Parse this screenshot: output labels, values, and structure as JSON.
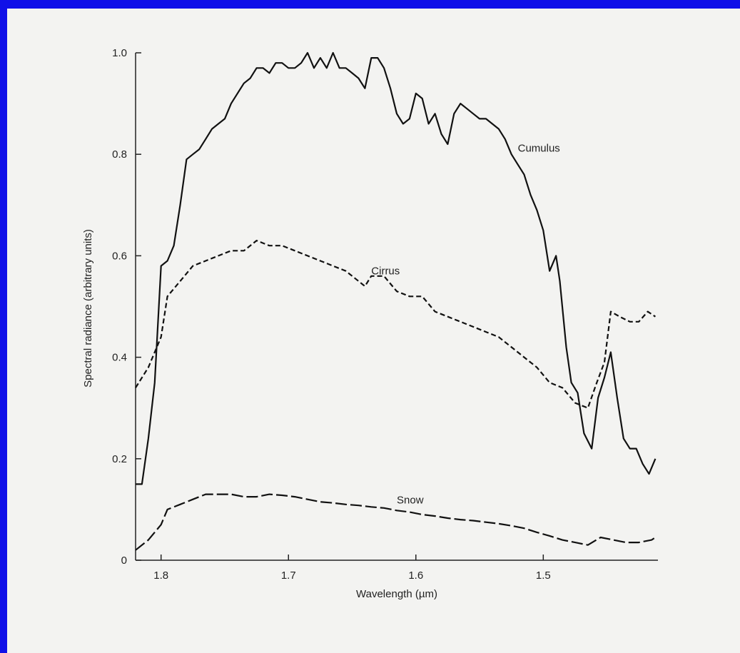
{
  "chart_data": {
    "type": "line",
    "title": "",
    "xlabel": "Wavelength (µm)",
    "ylabel": "Spectral radiance (arbitrary units)",
    "xlim": [
      1.82,
      1.41
    ],
    "ylim": [
      0,
      1.0
    ],
    "x_reversed": true,
    "grid": false,
    "x_ticks": [
      {
        "value": 1.8,
        "label": "1.8"
      },
      {
        "value": 1.7,
        "label": "1.7"
      },
      {
        "value": 1.6,
        "label": "1.6"
      },
      {
        "value": 1.5,
        "label": "1.5"
      }
    ],
    "y_ticks": [
      {
        "value": 0,
        "label": "0"
      },
      {
        "value": 0.2,
        "label": "0.2"
      },
      {
        "value": 0.4,
        "label": "0.4"
      },
      {
        "value": 0.6,
        "label": "0.6"
      },
      {
        "value": 0.8,
        "label": "0.8"
      },
      {
        "value": 1.0,
        "label": "1.0"
      }
    ],
    "series": [
      {
        "name": "Cumulus",
        "style": "solid",
        "label_at": [
          1.52,
          0.805
        ],
        "points": [
          [
            1.82,
            0.15
          ],
          [
            1.815,
            0.15
          ],
          [
            1.81,
            0.24
          ],
          [
            1.805,
            0.35
          ],
          [
            1.8,
            0.58
          ],
          [
            1.795,
            0.59
          ],
          [
            1.79,
            0.62
          ],
          [
            1.785,
            0.7
          ],
          [
            1.78,
            0.79
          ],
          [
            1.775,
            0.8
          ],
          [
            1.77,
            0.81
          ],
          [
            1.765,
            0.83
          ],
          [
            1.76,
            0.85
          ],
          [
            1.755,
            0.86
          ],
          [
            1.75,
            0.87
          ],
          [
            1.745,
            0.9
          ],
          [
            1.74,
            0.92
          ],
          [
            1.735,
            0.94
          ],
          [
            1.73,
            0.95
          ],
          [
            1.725,
            0.97
          ],
          [
            1.72,
            0.97
          ],
          [
            1.715,
            0.96
          ],
          [
            1.71,
            0.98
          ],
          [
            1.705,
            0.98
          ],
          [
            1.7,
            0.97
          ],
          [
            1.695,
            0.97
          ],
          [
            1.69,
            0.98
          ],
          [
            1.685,
            1.0
          ],
          [
            1.68,
            0.97
          ],
          [
            1.675,
            0.99
          ],
          [
            1.67,
            0.97
          ],
          [
            1.665,
            1.0
          ],
          [
            1.66,
            0.97
          ],
          [
            1.655,
            0.97
          ],
          [
            1.65,
            0.96
          ],
          [
            1.645,
            0.95
          ],
          [
            1.64,
            0.93
          ],
          [
            1.635,
            0.99
          ],
          [
            1.63,
            0.99
          ],
          [
            1.625,
            0.97
          ],
          [
            1.62,
            0.93
          ],
          [
            1.615,
            0.88
          ],
          [
            1.61,
            0.86
          ],
          [
            1.605,
            0.87
          ],
          [
            1.6,
            0.92
          ],
          [
            1.595,
            0.91
          ],
          [
            1.59,
            0.86
          ],
          [
            1.585,
            0.88
          ],
          [
            1.58,
            0.84
          ],
          [
            1.575,
            0.82
          ],
          [
            1.57,
            0.88
          ],
          [
            1.565,
            0.9
          ],
          [
            1.56,
            0.89
          ],
          [
            1.555,
            0.88
          ],
          [
            1.55,
            0.87
          ],
          [
            1.545,
            0.87
          ],
          [
            1.54,
            0.86
          ],
          [
            1.535,
            0.85
          ],
          [
            1.53,
            0.83
          ],
          [
            1.525,
            0.8
          ],
          [
            1.52,
            0.78
          ],
          [
            1.515,
            0.76
          ],
          [
            1.51,
            0.72
          ],
          [
            1.505,
            0.69
          ],
          [
            1.5,
            0.65
          ],
          [
            1.495,
            0.57
          ],
          [
            1.49,
            0.6
          ],
          [
            1.487,
            0.55
          ],
          [
            1.482,
            0.42
          ],
          [
            1.478,
            0.35
          ],
          [
            1.473,
            0.33
          ],
          [
            1.468,
            0.25
          ],
          [
            1.462,
            0.22
          ],
          [
            1.457,
            0.32
          ],
          [
            1.452,
            0.36
          ],
          [
            1.447,
            0.41
          ],
          [
            1.442,
            0.32
          ],
          [
            1.437,
            0.24
          ],
          [
            1.432,
            0.22
          ],
          [
            1.427,
            0.22
          ],
          [
            1.422,
            0.19
          ],
          [
            1.417,
            0.17
          ],
          [
            1.412,
            0.2
          ]
        ]
      },
      {
        "name": "Cirrus",
        "style": "dashed",
        "label_at": [
          1.635,
          0.563
        ],
        "points": [
          [
            1.82,
            0.34
          ],
          [
            1.81,
            0.38
          ],
          [
            1.8,
            0.44
          ],
          [
            1.795,
            0.52
          ],
          [
            1.785,
            0.55
          ],
          [
            1.775,
            0.58
          ],
          [
            1.765,
            0.59
          ],
          [
            1.755,
            0.6
          ],
          [
            1.745,
            0.61
          ],
          [
            1.735,
            0.61
          ],
          [
            1.725,
            0.63
          ],
          [
            1.715,
            0.62
          ],
          [
            1.705,
            0.62
          ],
          [
            1.695,
            0.61
          ],
          [
            1.685,
            0.6
          ],
          [
            1.675,
            0.59
          ],
          [
            1.665,
            0.58
          ],
          [
            1.655,
            0.57
          ],
          [
            1.645,
            0.55
          ],
          [
            1.64,
            0.54
          ],
          [
            1.635,
            0.56
          ],
          [
            1.625,
            0.56
          ],
          [
            1.615,
            0.53
          ],
          [
            1.605,
            0.52
          ],
          [
            1.595,
            0.52
          ],
          [
            1.585,
            0.49
          ],
          [
            1.575,
            0.48
          ],
          [
            1.565,
            0.47
          ],
          [
            1.555,
            0.46
          ],
          [
            1.545,
            0.45
          ],
          [
            1.535,
            0.44
          ],
          [
            1.525,
            0.42
          ],
          [
            1.515,
            0.4
          ],
          [
            1.505,
            0.38
          ],
          [
            1.495,
            0.35
          ],
          [
            1.485,
            0.34
          ],
          [
            1.475,
            0.31
          ],
          [
            1.465,
            0.3
          ],
          [
            1.458,
            0.35
          ],
          [
            1.452,
            0.39
          ],
          [
            1.447,
            0.49
          ],
          [
            1.44,
            0.48
          ],
          [
            1.432,
            0.47
          ],
          [
            1.425,
            0.47
          ],
          [
            1.418,
            0.49
          ],
          [
            1.412,
            0.48
          ]
        ]
      },
      {
        "name": "Snow",
        "style": "long-dashed",
        "label_at": [
          1.615,
          0.112
        ],
        "points": [
          [
            1.82,
            0.02
          ],
          [
            1.81,
            0.04
          ],
          [
            1.8,
            0.07
          ],
          [
            1.795,
            0.1
          ],
          [
            1.785,
            0.11
          ],
          [
            1.775,
            0.12
          ],
          [
            1.765,
            0.13
          ],
          [
            1.755,
            0.13
          ],
          [
            1.745,
            0.13
          ],
          [
            1.735,
            0.125
          ],
          [
            1.725,
            0.125
          ],
          [
            1.715,
            0.13
          ],
          [
            1.705,
            0.128
          ],
          [
            1.695,
            0.125
          ],
          [
            1.685,
            0.12
          ],
          [
            1.675,
            0.115
          ],
          [
            1.665,
            0.113
          ],
          [
            1.655,
            0.11
          ],
          [
            1.645,
            0.108
          ],
          [
            1.635,
            0.105
          ],
          [
            1.625,
            0.103
          ],
          [
            1.615,
            0.098
          ],
          [
            1.605,
            0.095
          ],
          [
            1.595,
            0.09
          ],
          [
            1.585,
            0.087
          ],
          [
            1.575,
            0.083
          ],
          [
            1.565,
            0.08
          ],
          [
            1.555,
            0.078
          ],
          [
            1.545,
            0.075
          ],
          [
            1.535,
            0.072
          ],
          [
            1.525,
            0.068
          ],
          [
            1.515,
            0.063
          ],
          [
            1.505,
            0.055
          ],
          [
            1.495,
            0.048
          ],
          [
            1.485,
            0.04
          ],
          [
            1.475,
            0.035
          ],
          [
            1.465,
            0.03
          ],
          [
            1.455,
            0.045
          ],
          [
            1.445,
            0.04
          ],
          [
            1.435,
            0.035
          ],
          [
            1.425,
            0.035
          ],
          [
            1.415,
            0.04
          ],
          [
            1.412,
            0.045
          ]
        ]
      }
    ]
  }
}
